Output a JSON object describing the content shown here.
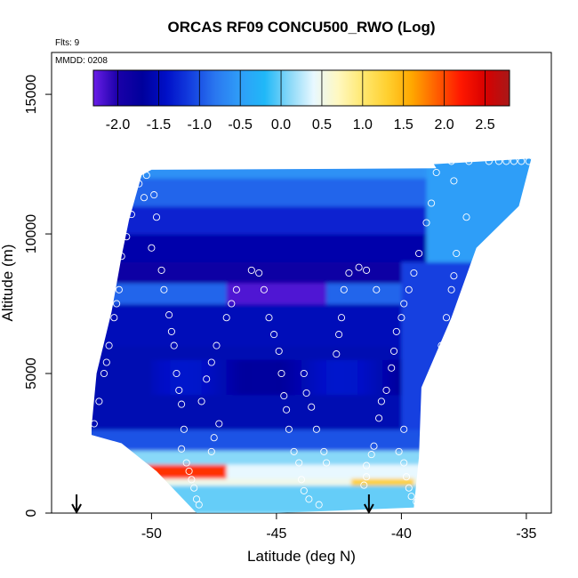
{
  "title": "ORCAS RF09 CONCU500_RWO (Log)",
  "flts_label": "Flts: 9",
  "mmdd_label": "MMDD: 0208",
  "chart_data": {
    "type": "heatmap",
    "title": "ORCAS RF09 CONCU500_RWO (Log)",
    "xlabel": "Latitude (deg N)",
    "ylabel": "Altitude (m)",
    "xlim": [
      -54,
      -34
    ],
    "ylim": [
      0,
      16500
    ],
    "x_ticks": [
      -50,
      -45,
      -40,
      -35
    ],
    "x_tick_labels": [
      "-50",
      "-45",
      "-40",
      "-35"
    ],
    "y_ticks": [
      0,
      5000,
      10000,
      15000
    ],
    "y_tick_labels": [
      "0",
      "5000",
      "10000",
      "15000"
    ],
    "colorbar": {
      "min": -2.3,
      "max": 2.8,
      "ticks": [
        -2.0,
        -1.5,
        -1.0,
        -0.5,
        0.0,
        0.5,
        1.0,
        1.5,
        2.0,
        2.5
      ],
      "tick_labels": [
        "-2.0",
        "-1.5",
        "-1.0",
        "-0.5",
        "0.0",
        "0.5",
        "1.0",
        "1.5",
        "2.0",
        "2.5"
      ],
      "colors": [
        "#6a1ee8",
        "#1a00a8",
        "#00009c",
        "#0010c8",
        "#1440e0",
        "#2a78f0",
        "#2f9ef8",
        "#20b8f8",
        "#88d8f8",
        "#e8f8ff",
        "#fff8c0",
        "#ffe870",
        "#ffd030",
        "#ffa800",
        "#ff6000",
        "#ff1800",
        "#d80000",
        "#a81818"
      ]
    },
    "arrows_at_latitude": [
      -53,
      -41.3
    ],
    "sample_points": [
      [
        -52.3,
        3200
      ],
      [
        -52.1,
        4000
      ],
      [
        -51.9,
        5000
      ],
      [
        -51.8,
        5400
      ],
      [
        -51.7,
        6000
      ],
      [
        -51.5,
        7000
      ],
      [
        -51.4,
        7500
      ],
      [
        -51.3,
        8000
      ],
      [
        -51.2,
        9200
      ],
      [
        -51.0,
        9900
      ],
      [
        -50.8,
        10700
      ],
      [
        -50.3,
        11300
      ],
      [
        -50.5,
        11800
      ],
      [
        -50.2,
        12100
      ],
      [
        -49.9,
        11400
      ],
      [
        -49.8,
        10600
      ],
      [
        -50.0,
        9500
      ],
      [
        -49.6,
        8700
      ],
      [
        -49.5,
        8000
      ],
      [
        -49.3,
        7100
      ],
      [
        -49.2,
        6500
      ],
      [
        -49.1,
        6000
      ],
      [
        -49.0,
        5000
      ],
      [
        -48.9,
        4400
      ],
      [
        -48.8,
        3900
      ],
      [
        -48.7,
        3000
      ],
      [
        -48.8,
        2300
      ],
      [
        -48.6,
        1800
      ],
      [
        -48.5,
        1500
      ],
      [
        -48.4,
        1200
      ],
      [
        -48.3,
        900
      ],
      [
        -48.2,
        500
      ],
      [
        -48.1,
        300
      ],
      [
        -48.0,
        4000
      ],
      [
        -47.8,
        4800
      ],
      [
        -47.6,
        5400
      ],
      [
        -47.4,
        6000
      ],
      [
        -47.0,
        7000
      ],
      [
        -46.8,
        7500
      ],
      [
        -46.6,
        8000
      ],
      [
        -46.0,
        8700
      ],
      [
        -45.7,
        8600
      ],
      [
        -45.5,
        8000
      ],
      [
        -47.6,
        2200
      ],
      [
        -47.5,
        2700
      ],
      [
        -47.3,
        3200
      ],
      [
        -45.3,
        7000
      ],
      [
        -45.1,
        6400
      ],
      [
        -44.9,
        5800
      ],
      [
        -44.8,
        5000
      ],
      [
        -44.7,
        4200
      ],
      [
        -44.6,
        3700
      ],
      [
        -44.5,
        3000
      ],
      [
        -44.3,
        2200
      ],
      [
        -44.1,
        1800
      ],
      [
        -44.0,
        1200
      ],
      [
        -43.9,
        800
      ],
      [
        -43.7,
        500
      ],
      [
        -43.3,
        300
      ],
      [
        -43.0,
        1800
      ],
      [
        -43.1,
        2200
      ],
      [
        -43.4,
        3000
      ],
      [
        -43.6,
        3800
      ],
      [
        -43.8,
        4300
      ],
      [
        -43.9,
        5000
      ],
      [
        -42.6,
        5700
      ],
      [
        -42.5,
        6400
      ],
      [
        -42.4,
        7000
      ],
      [
        -42.3,
        8000
      ],
      [
        -42.1,
        8600
      ],
      [
        -41.7,
        8800
      ],
      [
        -41.4,
        8700
      ],
      [
        -41.0,
        8000
      ],
      [
        -41.5,
        1000
      ],
      [
        -41.4,
        1300
      ],
      [
        -41.4,
        1700
      ],
      [
        -41.2,
        2100
      ],
      [
        -41.1,
        2400
      ],
      [
        -40.9,
        3400
      ],
      [
        -40.8,
        4000
      ],
      [
        -40.6,
        4400
      ],
      [
        -40.4,
        5200
      ],
      [
        -40.3,
        5800
      ],
      [
        -40.2,
        6500
      ],
      [
        -40.0,
        7000
      ],
      [
        -39.9,
        7500
      ],
      [
        -39.7,
        8000
      ],
      [
        -39.5,
        8600
      ],
      [
        -39.3,
        9300
      ],
      [
        -40.1,
        2200
      ],
      [
        -39.9,
        1800
      ],
      [
        -39.8,
        1300
      ],
      [
        -39.7,
        900
      ],
      [
        -39.6,
        600
      ],
      [
        -39.4,
        400
      ],
      [
        -39.9,
        3000
      ],
      [
        -39.1,
        3200
      ],
      [
        -38.9,
        3600
      ],
      [
        -38.8,
        4000
      ],
      [
        -38.6,
        4600
      ],
      [
        -38.5,
        5500
      ],
      [
        -38.4,
        6000
      ],
      [
        -38.2,
        7000
      ],
      [
        -38.0,
        8000
      ],
      [
        -37.9,
        8500
      ],
      [
        -37.8,
        9300
      ],
      [
        -39.0,
        10400
      ],
      [
        -38.8,
        11100
      ],
      [
        -38.6,
        12200
      ],
      [
        -38.0,
        12600
      ],
      [
        -37.4,
        10600
      ],
      [
        -37.9,
        11900
      ],
      [
        -37.3,
        12600
      ],
      [
        -36.5,
        12600
      ],
      [
        -36.1,
        12600
      ],
      [
        -35.8,
        12600
      ],
      [
        -35.5,
        12600
      ],
      [
        -35.2,
        12600
      ],
      [
        -34.9,
        12600
      ]
    ]
  }
}
